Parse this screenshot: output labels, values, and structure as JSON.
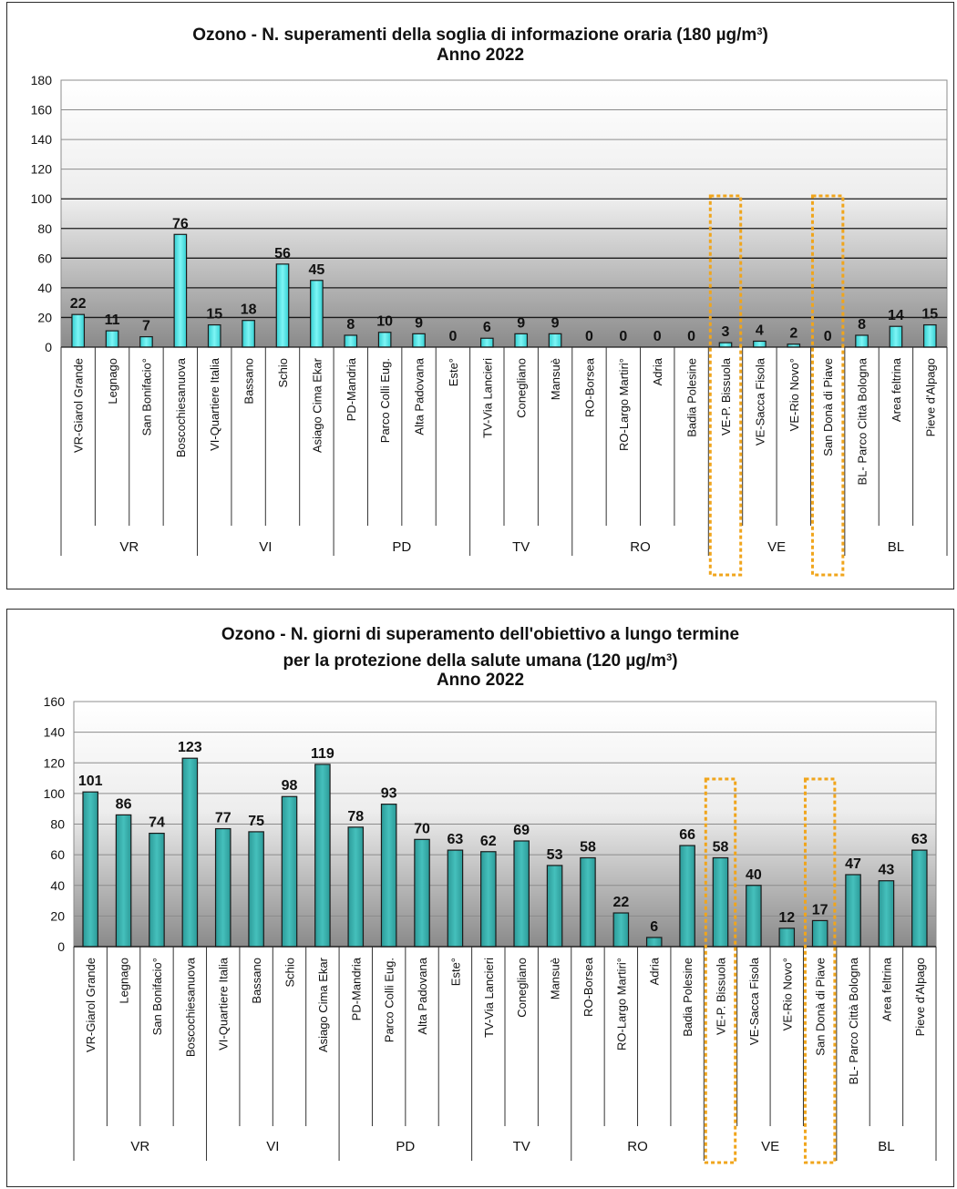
{
  "colors": {
    "bar_top": "#66f0f0",
    "bar_bottom": "#30c8cc",
    "highlight": "#f0a51c",
    "grid_dark": "#1a1a1a"
  },
  "chart_data": [
    {
      "type": "bar",
      "title": "Ozono - N. superamenti della soglia di informazione oraria (180 µg/m",
      "title_sup": "3",
      "title_end": ")",
      "subtitle": "Anno 2022",
      "ylim": [
        0,
        180
      ],
      "yticks": [
        0,
        20,
        40,
        60,
        80,
        100,
        120,
        140,
        160,
        180
      ],
      "categories": [
        "VR-Giarol Grande",
        "Legnago",
        "San Bonifacio°",
        "Boscochiesanuova",
        "VI-Quartiere Italia",
        "Bassano",
        "Schio",
        "Asiago Cima Ekar",
        "PD-Mandria",
        "Parco Colli Eug.",
        "Alta Padovana",
        "Este°",
        "TV-Via Lancieri",
        "Conegliano",
        "Mansuè",
        "RO-Borsea",
        "RO-Largo Martiri°",
        "Adria",
        "Badia Polesine",
        "VE-P. Bissuola",
        "VE-Sacca Fisola",
        "VE-Rio Novo°",
        "San Donà di Piave",
        "BL- Parco Città Bologna",
        "Area feltrina",
        "Pieve d'Alpago"
      ],
      "values": [
        22,
        11,
        7,
        76,
        15,
        18,
        56,
        45,
        8,
        10,
        9,
        0,
        6,
        9,
        9,
        0,
        0,
        0,
        0,
        3,
        4,
        2,
        0,
        8,
        14,
        15
      ],
      "groups": [
        {
          "label": "VR",
          "start": 0,
          "end": 3
        },
        {
          "label": "VI",
          "start": 4,
          "end": 7
        },
        {
          "label": "PD",
          "start": 8,
          "end": 11
        },
        {
          "label": "TV",
          "start": 12,
          "end": 14
        },
        {
          "label": "RO",
          "start": 15,
          "end": 18
        },
        {
          "label": "VE",
          "start": 19,
          "end": 22
        },
        {
          "label": "BL",
          "start": 23,
          "end": 25
        }
      ],
      "highlighted": [
        19,
        22
      ]
    },
    {
      "type": "bar",
      "title": "Ozono - N. giorni di superamento dell'obiettivo a lungo termine",
      "title2": "per la protezione della salute umana (120 µg/m",
      "title_sup": "3",
      "title_end": ")",
      "subtitle": "Anno 2022",
      "ylim": [
        0,
        160
      ],
      "yticks": [
        0,
        20,
        40,
        60,
        80,
        100,
        120,
        140,
        160
      ],
      "categories": [
        "VR-Giarol Grande",
        "Legnago",
        "San Bonifacio°",
        "Boscochiesanuova",
        "VI-Quartiere Italia",
        "Bassano",
        "Schio",
        "Asiago Cima Ekar",
        "PD-Mandria",
        "Parco Colli Eug.",
        "Alta Padovana",
        "Este°",
        "TV-Via Lancieri",
        "Conegliano",
        "Mansuè",
        "RO-Borsea",
        "RO-Largo Martiri°",
        "Adria",
        "Badia Polesine",
        "VE-P. Bissuola",
        "VE-Sacca Fisola",
        "VE-Rio Novo°",
        "San Donà di Piave",
        "BL- Parco Città Bologna",
        "Area feltrina",
        "Pieve d'Alpago"
      ],
      "values": [
        101,
        86,
        74,
        123,
        77,
        75,
        98,
        119,
        78,
        93,
        70,
        63,
        62,
        69,
        53,
        58,
        22,
        6,
        66,
        58,
        40,
        12,
        17,
        47,
        43,
        63
      ],
      "groups": [
        {
          "label": "VR",
          "start": 0,
          "end": 3
        },
        {
          "label": "VI",
          "start": 4,
          "end": 7
        },
        {
          "label": "PD",
          "start": 8,
          "end": 11
        },
        {
          "label": "TV",
          "start": 12,
          "end": 14
        },
        {
          "label": "RO",
          "start": 15,
          "end": 18
        },
        {
          "label": "VE",
          "start": 19,
          "end": 22
        },
        {
          "label": "BL",
          "start": 23,
          "end": 25
        }
      ],
      "highlighted": [
        19,
        22
      ]
    }
  ]
}
